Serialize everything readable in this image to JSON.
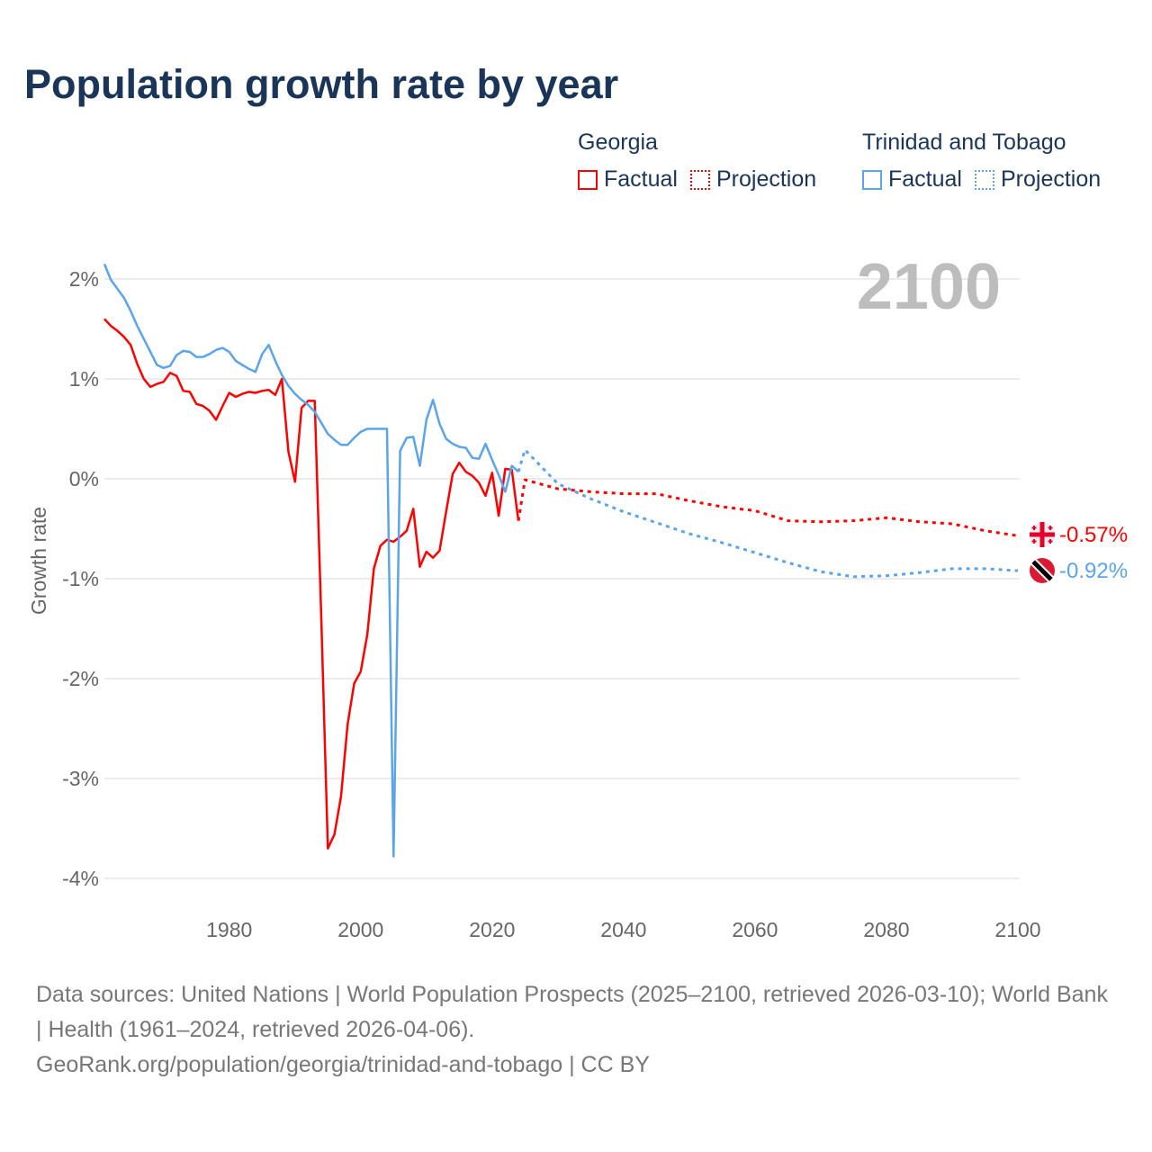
{
  "title": "Population growth rate by year",
  "legend": {
    "groups": [
      {
        "name": "Georgia",
        "factual": "Factual",
        "projection": "Projection",
        "color": "#ff0000"
      },
      {
        "name": "Trinidad and Tobago",
        "factual": "Factual",
        "projection": "Projection",
        "color": "#5ba4e8"
      }
    ]
  },
  "year_label": "2100",
  "end_labels": {
    "georgia": "-0.57%",
    "tt": "-0.92%"
  },
  "footer": {
    "line1": "Data sources: United Nations | World Population Prospects (2025–2100, retrieved 2026-03-10); World Bank | Health (1961–2024, retrieved 2026-04-06).",
    "line2": "GeoRank.org/population/georgia/trinidad-and-tobago | CC BY"
  },
  "chart_data": {
    "type": "line",
    "title": "Population growth rate by year",
    "xlabel": "",
    "ylabel": "Growth rate",
    "xlim": [
      1961,
      2100
    ],
    "ylim": [
      -4.25,
      2.2
    ],
    "xticks": [
      1980,
      2000,
      2020,
      2040,
      2060,
      2080,
      2100
    ],
    "xtick_labels": [
      "1980",
      "2000",
      "2020",
      "2040",
      "2060",
      "2080",
      "2100"
    ],
    "yticks": [
      2,
      1,
      0,
      -1,
      -2,
      -3,
      -4
    ],
    "ytick_labels": [
      "2%",
      "1%",
      "0%",
      "-1%",
      "-2%",
      "-3%",
      "-4%"
    ],
    "grid": true,
    "series": [
      {
        "name": "Georgia",
        "kind": "Factual",
        "color": "#ff0000",
        "dashed": false,
        "x": [
          1961,
          1962,
          1963,
          1964,
          1965,
          1966,
          1967,
          1968,
          1969,
          1970,
          1971,
          1972,
          1973,
          1974,
          1975,
          1976,
          1977,
          1978,
          1979,
          1980,
          1981,
          1982,
          1983,
          1984,
          1985,
          1986,
          1987,
          1988,
          1989,
          1990,
          1991,
          1992,
          1993,
          1994,
          1995,
          1996,
          1997,
          1998,
          1999,
          2000,
          2001,
          2002,
          2003,
          2004,
          2005,
          2006,
          2007,
          2008,
          2009,
          2010,
          2011,
          2012,
          2013,
          2014,
          2015,
          2016,
          2017,
          2018,
          2019,
          2020,
          2021,
          2022,
          2023,
          2024
        ],
        "y": [
          1.6,
          1.53,
          1.48,
          1.42,
          1.34,
          1.15,
          1.0,
          0.92,
          0.95,
          0.97,
          1.06,
          1.03,
          0.88,
          0.87,
          0.75,
          0.73,
          0.68,
          0.59,
          0.73,
          0.86,
          0.82,
          0.85,
          0.87,
          0.86,
          0.88,
          0.89,
          0.84,
          1.0,
          0.27,
          -0.03,
          0.71,
          0.78,
          0.78,
          -1.4,
          -3.7,
          -3.56,
          -3.18,
          -2.46,
          -2.05,
          -1.93,
          -1.56,
          -0.9,
          -0.67,
          -0.61,
          -0.63,
          -0.58,
          -0.52,
          -0.3,
          -0.88,
          -0.73,
          -0.79,
          -0.72,
          -0.33,
          0.05,
          0.16,
          0.07,
          0.03,
          -0.04,
          -0.17,
          0.06,
          -0.37,
          0.1,
          0.09,
          -0.42
        ]
      },
      {
        "name": "Georgia",
        "kind": "Projection",
        "color": "#ff0000",
        "dashed": true,
        "x": [
          2024,
          2025,
          2030,
          2035,
          2040,
          2045,
          2050,
          2055,
          2060,
          2065,
          2070,
          2075,
          2080,
          2085,
          2090,
          2095,
          2100
        ],
        "y": [
          -0.42,
          -0.01,
          -0.1,
          -0.13,
          -0.15,
          -0.15,
          -0.22,
          -0.28,
          -0.32,
          -0.42,
          -0.43,
          -0.42,
          -0.39,
          -0.43,
          -0.45,
          -0.52,
          -0.57
        ]
      },
      {
        "name": "Trinidad and Tobago",
        "kind": "Factual",
        "color": "#5ba4e8",
        "dashed": false,
        "x": [
          1961,
          1962,
          1963,
          1964,
          1965,
          1966,
          1967,
          1968,
          1969,
          1970,
          1971,
          1972,
          1973,
          1974,
          1975,
          1976,
          1977,
          1978,
          1979,
          1980,
          1981,
          1982,
          1983,
          1984,
          1985,
          1986,
          1987,
          1988,
          1989,
          1990,
          1991,
          1992,
          1993,
          1994,
          1995,
          1996,
          1997,
          1998,
          1999,
          2000,
          2001,
          2002,
          2003,
          2004,
          2005,
          2006,
          2007,
          2008,
          2009,
          2010,
          2011,
          2012,
          2013,
          2014,
          2015,
          2016,
          2017,
          2018,
          2019,
          2020,
          2021,
          2022,
          2023,
          2024
        ],
        "y": [
          2.15,
          1.99,
          1.9,
          1.81,
          1.68,
          1.53,
          1.4,
          1.27,
          1.14,
          1.11,
          1.13,
          1.24,
          1.28,
          1.27,
          1.22,
          1.22,
          1.25,
          1.29,
          1.31,
          1.27,
          1.18,
          1.14,
          1.1,
          1.07,
          1.25,
          1.34,
          1.18,
          1.04,
          0.93,
          0.85,
          0.79,
          0.74,
          0.67,
          0.56,
          0.45,
          0.39,
          0.34,
          0.34,
          0.41,
          0.47,
          0.5,
          0.5,
          0.5,
          0.5,
          -3.78,
          0.28,
          0.41,
          0.42,
          0.13,
          0.59,
          0.79,
          0.55,
          0.4,
          0.35,
          0.32,
          0.31,
          0.21,
          0.2,
          0.35,
          0.19,
          0.04,
          -0.13,
          0.13,
          0.07
        ]
      },
      {
        "name": "Trinidad and Tobago",
        "kind": "Projection",
        "color": "#5ba4e8",
        "dashed": true,
        "x": [
          2024,
          2025,
          2030,
          2035,
          2040,
          2045,
          2050,
          2055,
          2060,
          2065,
          2070,
          2075,
          2080,
          2085,
          2090,
          2095,
          2100
        ],
        "y": [
          0.07,
          0.29,
          -0.05,
          -0.2,
          -0.33,
          -0.44,
          -0.55,
          -0.64,
          -0.74,
          -0.84,
          -0.93,
          -0.98,
          -0.97,
          -0.94,
          -0.9,
          -0.9,
          -0.92
        ]
      }
    ]
  }
}
